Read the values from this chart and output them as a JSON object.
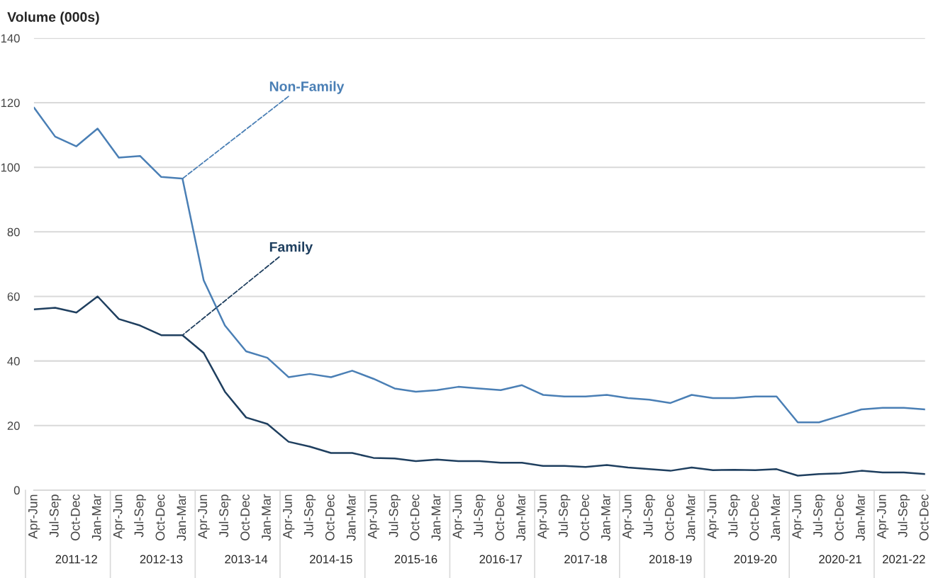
{
  "chart_data": {
    "type": "line",
    "ylabel": "Volume (000s)",
    "categories": [
      "Apr-Jun",
      "Jul-Sep",
      "Oct-Dec",
      "Jan-Mar",
      "Apr-Jun",
      "Jul-Sep",
      "Oct-Dec",
      "Jan-Mar",
      "Apr-Jun",
      "Jul-Sep",
      "Oct-Dec",
      "Jan-Mar",
      "Apr-Jun",
      "Jul-Sep",
      "Oct-Dec",
      "Jan-Mar",
      "Apr-Jun",
      "Jul-Sep",
      "Oct-Dec",
      "Jan-Mar",
      "Apr-Jun",
      "Jul-Sep",
      "Oct-Dec",
      "Jan-Mar",
      "Apr-Jun",
      "Jul-Sep",
      "Oct-Dec",
      "Jan-Mar",
      "Apr-Jun",
      "Jul-Sep",
      "Oct-Dec",
      "Jan-Mar",
      "Apr-Jun",
      "Jul-Sep",
      "Oct-Dec",
      "Jan-Mar",
      "Apr-Jun",
      "Jul-Sep",
      "Oct-Dec",
      "Jan-Mar",
      "Apr-Jun",
      "Jul-Sep",
      "Oct-Dec"
    ],
    "series": [
      {
        "name": "Non-Family",
        "color": "#4a7fb5",
        "values": [
          118.5,
          109.5,
          106.5,
          112,
          103,
          103.5,
          97,
          96.5,
          65,
          51,
          43,
          41,
          35,
          36,
          35,
          37,
          34.5,
          31.5,
          30.5,
          31,
          32,
          31.5,
          31,
          32.5,
          29.5,
          29,
          29,
          29.5,
          28.5,
          28,
          27,
          29.5,
          28.5,
          28.5,
          29,
          29,
          21,
          21,
          23,
          25,
          25.5,
          25.5,
          25
        ]
      },
      {
        "name": "Family",
        "color": "#1f3f5f",
        "values": [
          56,
          56.5,
          55,
          60,
          53,
          51,
          48,
          48,
          42.5,
          30.5,
          22.5,
          20.5,
          15,
          13.5,
          11.5,
          11.5,
          10,
          9.8,
          9,
          9.5,
          9,
          9,
          8.5,
          8.5,
          7.5,
          7.5,
          7.2,
          7.8,
          7,
          6.5,
          6,
          7,
          6.2,
          6.3,
          6.2,
          6.5,
          4.5,
          5,
          5.2,
          6,
          5.5,
          5.5,
          5
        ]
      }
    ],
    "ylim": [
      0,
      140
    ],
    "yticks": [
      0,
      20,
      40,
      60,
      80,
      100,
      120,
      140
    ],
    "grid": "y",
    "annotations": [
      "2011-12",
      "2012-13",
      "2013-14",
      "2014-15",
      "2015-16",
      "2016-17",
      "2017-18",
      "2018-19",
      "2019-20",
      "2020-21",
      "2021-22"
    ]
  }
}
